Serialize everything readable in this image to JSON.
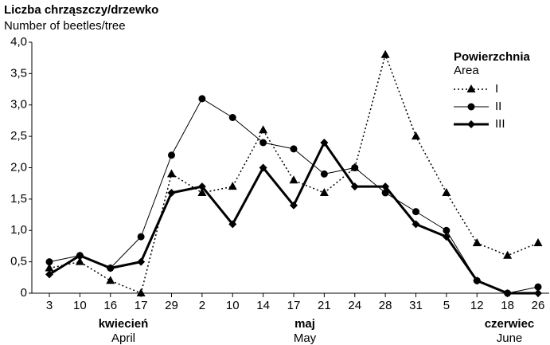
{
  "chart_data": {
    "type": "line",
    "title": "Liczba chrząszczy/drzewko",
    "subtitle": "Number of beetles/tree",
    "categories": [
      "3",
      "10",
      "16",
      "17",
      "29",
      "2",
      "10",
      "14",
      "17",
      "21",
      "24",
      "28",
      "31",
      "5",
      "12",
      "18",
      "26"
    ],
    "months": [
      {
        "label": "kwiecień",
        "sublabel": "April"
      },
      {
        "label": "maj",
        "sublabel": "May"
      },
      {
        "label": "czerwiec",
        "sublabel": "June"
      }
    ],
    "legend_title": "Powierzchnia",
    "legend_subtitle": "Area",
    "legend_position": "upper right",
    "series": [
      {
        "name": "I",
        "color": "#000000",
        "dash": "dotted",
        "marker": "triangle",
        "width": 1.5,
        "values": [
          0.4,
          0.5,
          0.2,
          0,
          1.9,
          1.6,
          1.7,
          2.6,
          1.8,
          1.6,
          2.0,
          3.8,
          2.5,
          1.6,
          0.8,
          0.6,
          0.8
        ]
      },
      {
        "name": "II",
        "color": "#000000",
        "dash": "solid",
        "marker": "circle",
        "width": 1,
        "values": [
          0.5,
          0.6,
          0.4,
          0.9,
          2.2,
          3.1,
          2.8,
          2.4,
          2.3,
          1.9,
          2.0,
          1.6,
          1.3,
          1.0,
          0.2,
          0,
          0.1
        ]
      },
      {
        "name": "III",
        "color": "#000000",
        "dash": "solid",
        "marker": "diamond",
        "width": 3,
        "values": [
          0.3,
          0.6,
          0.4,
          0.5,
          1.6,
          1.7,
          1.1,
          2.0,
          1.4,
          2.4,
          1.7,
          1.7,
          1.1,
          0.9,
          0.2,
          0,
          0
        ]
      }
    ],
    "ylim": [
      0,
      4
    ],
    "yticks": [
      0,
      {
        "value": 0.5,
        "label": "0,5"
      },
      {
        "value": 1,
        "label": "1,0"
      },
      {
        "value": 1.5,
        "label": "1,5"
      },
      {
        "value": 2,
        "label": "2,0"
      },
      {
        "value": 2.5,
        "label": "2,5"
      },
      {
        "value": 3,
        "label": "3,0"
      },
      {
        "value": 3.5,
        "label": "3,5"
      },
      {
        "value": 4,
        "label": "4,0"
      }
    ],
    "grid": false
  }
}
